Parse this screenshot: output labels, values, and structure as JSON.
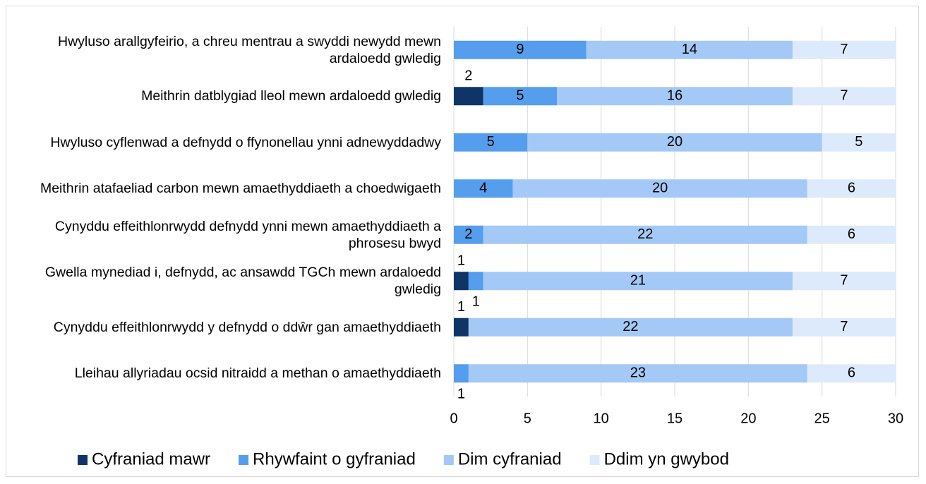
{
  "chart_data": {
    "type": "stacked-barh",
    "categories": [
      "Hwyluso arallgyfeirio, a chreu mentrau a swyddi newydd mewn ardaloedd gwledig",
      "Meithrin datblygiad lleol mewn ardaloedd gwledig",
      "Hwyluso cyflenwad a defnydd o ffynonellau ynni adnewyddadwy",
      "Meithrin atafaeliad carbon mewn amaethyddiaeth a choedwigaeth",
      "Cynyddu effeithlonrwydd defnydd ynni mewn amaethyddiaeth a phrosesu bwyd",
      "Gwella mynediad i, defnydd, ac ansawdd TGCh mewn ardaloedd gwledig",
      "Cynyddu effeithlonrwydd y defnydd o ddŵr gan amaethyddiaeth",
      "Lleihau allyriadau ocsid nitraidd a methan o amaethyddiaeth"
    ],
    "series": [
      {
        "name": "Cyfraniad mawr",
        "color": "#0e3566",
        "values": [
          null,
          2,
          null,
          null,
          null,
          1,
          1,
          null
        ]
      },
      {
        "name": "Rhywfaint o gyfraniad",
        "color": "#559ded",
        "values": [
          9,
          5,
          5,
          4,
          2,
          1,
          null,
          1
        ]
      },
      {
        "name": "Dim cyfraniad",
        "color": "#a4c9f6",
        "values": [
          14,
          16,
          20,
          20,
          22,
          21,
          22,
          23
        ]
      },
      {
        "name": "Ddim yn gwybod",
        "color": "#ddeafb",
        "values": [
          7,
          7,
          5,
          6,
          6,
          7,
          7,
          6
        ]
      }
    ],
    "xlim": [
      0,
      30
    ],
    "xticks": [
      0,
      5,
      10,
      15,
      20,
      25,
      30
    ],
    "grid": true,
    "legend": "bottom"
  }
}
